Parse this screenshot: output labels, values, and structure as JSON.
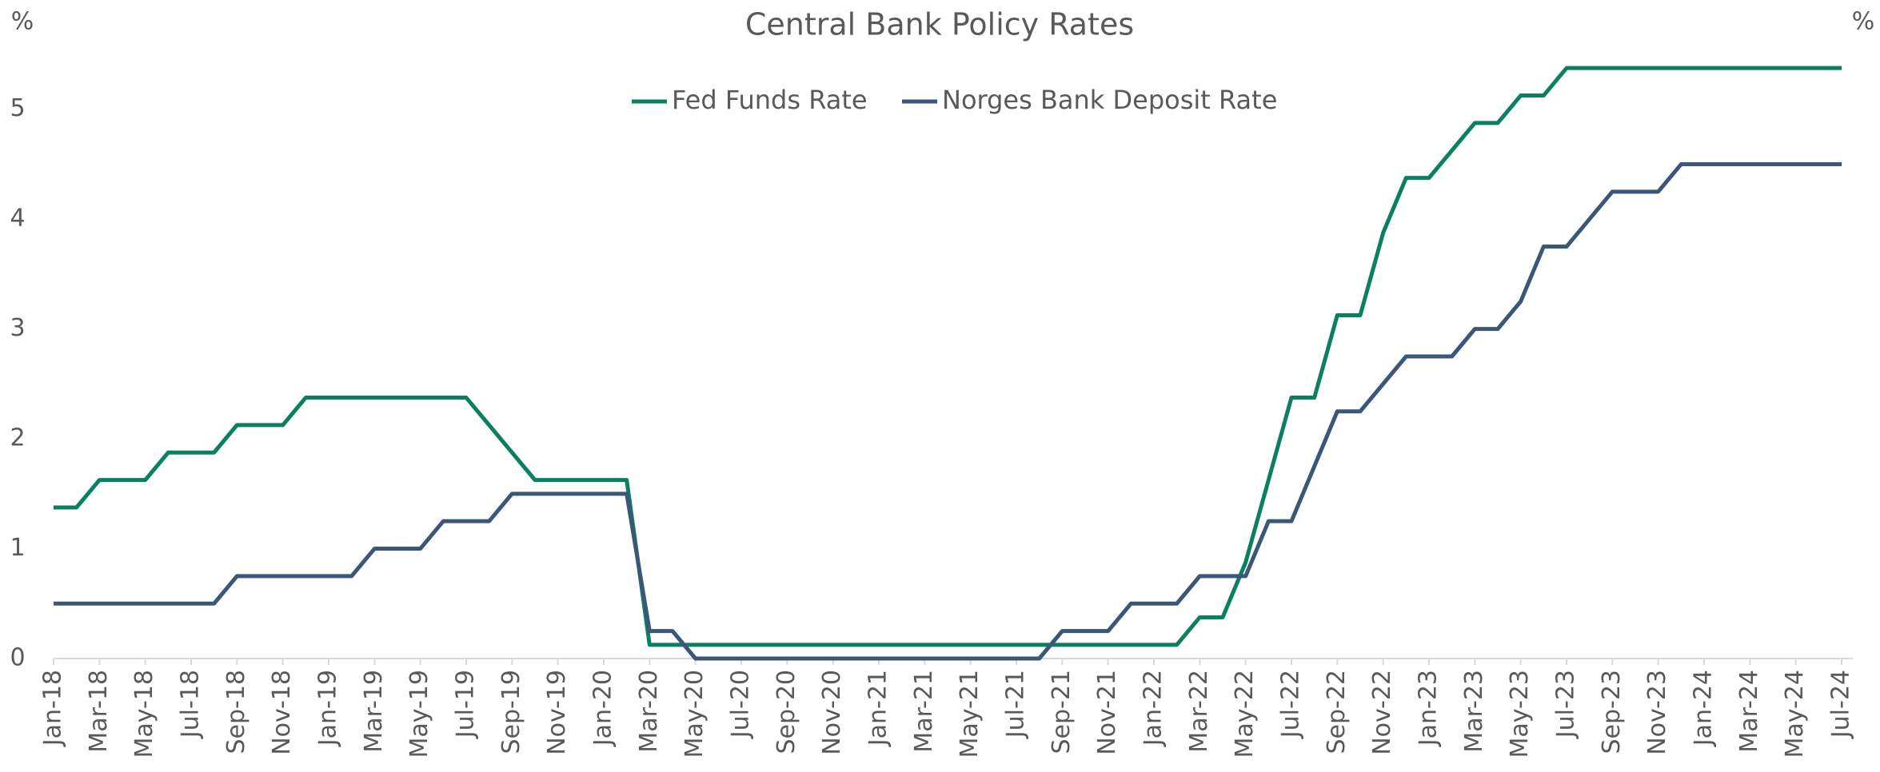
{
  "chart_data": {
    "type": "line",
    "title": "Central Bank Policy Rates",
    "ylabel": "%",
    "y2label": "%",
    "categories": [
      "Jan-18",
      null,
      "Mar-18",
      null,
      "May-18",
      null,
      "Jul-18",
      null,
      "Sep-18",
      null,
      "Nov-18",
      null,
      "Jan-19",
      null,
      "Mar-19",
      null,
      "May-19",
      null,
      "Jul-19",
      null,
      "Sep-19",
      null,
      "Nov-19",
      null,
      "Jan-20",
      null,
      "Mar-20",
      null,
      "May-20",
      null,
      "Jul-20",
      null,
      "Sep-20",
      null,
      "Nov-20",
      null,
      "Jan-21",
      null,
      "Mar-21",
      null,
      "May-21",
      null,
      "Jul-21",
      null,
      "Sep-21",
      null,
      "Nov-21",
      null,
      "Jan-22",
      null,
      "Mar-22",
      null,
      "May-22",
      null,
      "Jul-22",
      null,
      "Sep-22",
      null,
      "Nov-22",
      null,
      "Jan-23",
      null,
      "Mar-23",
      null,
      "May-23",
      null,
      "Jul-23",
      null,
      "Sep-23",
      null,
      "Nov-23",
      null,
      "Jan-24",
      null,
      "Mar-24",
      null,
      "May-24",
      null,
      "Jul-24"
    ],
    "series": [
      {
        "name": "Fed Funds Rate",
        "color": "#0b7f62",
        "values": [
          1.375,
          1.375,
          1.625,
          1.625,
          1.625,
          1.875,
          1.875,
          1.875,
          2.125,
          2.125,
          2.125,
          2.375,
          2.375,
          2.375,
          2.375,
          2.375,
          2.375,
          2.375,
          2.375,
          2.125,
          1.875,
          1.625,
          1.625,
          1.625,
          1.625,
          1.625,
          0.125,
          0.125,
          0.125,
          0.125,
          0.125,
          0.125,
          0.125,
          0.125,
          0.125,
          0.125,
          0.125,
          0.125,
          0.125,
          0.125,
          0.125,
          0.125,
          0.125,
          0.125,
          0.125,
          0.125,
          0.125,
          0.125,
          0.125,
          0.125,
          0.375,
          0.375,
          0.875,
          1.625,
          2.375,
          2.375,
          3.125,
          3.125,
          3.875,
          4.375,
          4.375,
          4.625,
          4.875,
          4.875,
          5.125,
          5.125,
          5.375,
          5.375,
          5.375,
          5.375,
          5.375,
          5.375,
          5.375,
          5.375,
          5.375,
          5.375,
          5.375,
          5.375,
          5.375
        ]
      },
      {
        "name": "Norges Bank Deposit Rate",
        "color": "#3b5778",
        "values": [
          0.5,
          0.5,
          0.5,
          0.5,
          0.5,
          0.5,
          0.5,
          0.5,
          0.75,
          0.75,
          0.75,
          0.75,
          0.75,
          0.75,
          1,
          1,
          1,
          1.25,
          1.25,
          1.25,
          1.5,
          1.5,
          1.5,
          1.5,
          1.5,
          1.5,
          0.25,
          0.25,
          0,
          0,
          0,
          0,
          0,
          0,
          0,
          0,
          0,
          0,
          0,
          0,
          0,
          0,
          0,
          0,
          0.25,
          0.25,
          0.25,
          0.5,
          0.5,
          0.5,
          0.75,
          0.75,
          0.75,
          1.25,
          1.25,
          1.75,
          2.25,
          2.25,
          2.5,
          2.75,
          2.75,
          2.75,
          3,
          3,
          3.25,
          3.75,
          3.75,
          4,
          4.25,
          4.25,
          4.25,
          4.5,
          4.5,
          4.5,
          4.5,
          4.5,
          4.5,
          4.5,
          4.5
        ]
      }
    ],
    "ylim": [
      0,
      5.5
    ],
    "yticks": [
      0,
      1,
      2,
      3,
      4,
      5
    ],
    "legend": "top"
  }
}
